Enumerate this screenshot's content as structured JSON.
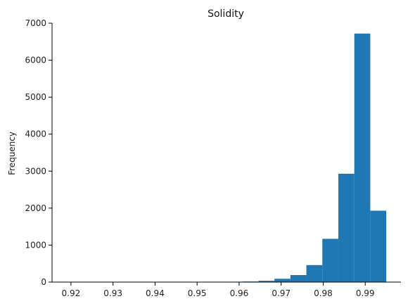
{
  "chart_data": {
    "type": "bar",
    "title": "Solidity",
    "xlabel": "",
    "ylabel": "Frequency",
    "xlim": [
      0.9155,
      0.9985
    ],
    "ylim": [
      0,
      7000
    ],
    "x_ticks": [
      0.92,
      0.93,
      0.94,
      0.95,
      0.96,
      0.97,
      0.98,
      0.99
    ],
    "x_tick_labels": [
      "0.92",
      "0.93",
      "0.94",
      "0.95",
      "0.96",
      "0.97",
      "0.98",
      "0.99"
    ],
    "y_ticks": [
      0,
      1000,
      2000,
      3000,
      4000,
      5000,
      6000,
      7000
    ],
    "y_tick_labels": [
      "0",
      "1000",
      "2000",
      "3000",
      "4000",
      "5000",
      "6000",
      "7000"
    ],
    "bar_color": "#1f77b4",
    "grid": false,
    "bins": [
      {
        "x0": 0.919,
        "x1": 0.9228,
        "count": 1
      },
      {
        "x0": 0.9228,
        "x1": 0.9266,
        "count": 0
      },
      {
        "x0": 0.9266,
        "x1": 0.9304,
        "count": 0
      },
      {
        "x0": 0.9304,
        "x1": 0.9342,
        "count": 1
      },
      {
        "x0": 0.9342,
        "x1": 0.938,
        "count": 0
      },
      {
        "x0": 0.938,
        "x1": 0.9418,
        "count": 1
      },
      {
        "x0": 0.9418,
        "x1": 0.9456,
        "count": 2
      },
      {
        "x0": 0.9456,
        "x1": 0.9494,
        "count": 2
      },
      {
        "x0": 0.9494,
        "x1": 0.9532,
        "count": 4
      },
      {
        "x0": 0.9532,
        "x1": 0.957,
        "count": 6
      },
      {
        "x0": 0.957,
        "x1": 0.9608,
        "count": 10
      },
      {
        "x0": 0.9608,
        "x1": 0.9646,
        "count": 15
      },
      {
        "x0": 0.9646,
        "x1": 0.9684,
        "count": 35
      },
      {
        "x0": 0.9684,
        "x1": 0.9722,
        "count": 90
      },
      {
        "x0": 0.9722,
        "x1": 0.976,
        "count": 190
      },
      {
        "x0": 0.976,
        "x1": 0.9798,
        "count": 460
      },
      {
        "x0": 0.9798,
        "x1": 0.9836,
        "count": 1170
      },
      {
        "x0": 0.9836,
        "x1": 0.9874,
        "count": 2930
      },
      {
        "x0": 0.9874,
        "x1": 0.9912,
        "count": 6720
      },
      {
        "x0": 0.9912,
        "x1": 0.995,
        "count": 1930
      }
    ]
  }
}
